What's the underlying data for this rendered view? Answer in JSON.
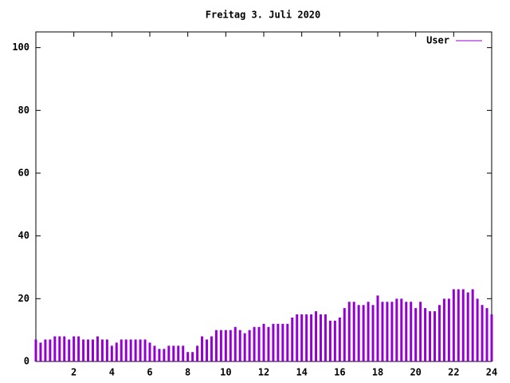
{
  "chart_data": {
    "type": "impulse",
    "title": "Freitag 3. Juli 2020",
    "series": [
      {
        "name": "User",
        "color": "#9400d3",
        "x": [
          0,
          0.25,
          0.5,
          0.75,
          1,
          1.25,
          1.5,
          1.75,
          2,
          2.25,
          2.5,
          2.75,
          3,
          3.25,
          3.5,
          3.75,
          4,
          4.25,
          4.5,
          4.75,
          5,
          5.25,
          5.5,
          5.75,
          6,
          6.25,
          6.5,
          6.75,
          7,
          7.25,
          7.5,
          7.75,
          8,
          8.25,
          8.5,
          8.75,
          9,
          9.25,
          9.5,
          9.75,
          10,
          10.25,
          10.5,
          10.75,
          11,
          11.25,
          11.5,
          11.75,
          12,
          12.25,
          12.5,
          12.75,
          13,
          13.25,
          13.5,
          13.75,
          14,
          14.25,
          14.5,
          14.75,
          15,
          15.25,
          15.5,
          15.75,
          16,
          16.25,
          16.5,
          16.75,
          17,
          17.25,
          17.5,
          17.75,
          18,
          18.25,
          18.5,
          18.75,
          19,
          19.25,
          19.5,
          19.75,
          20,
          20.25,
          20.5,
          20.75,
          21,
          21.25,
          21.5,
          21.75,
          22,
          22.25,
          22.5,
          22.75,
          23,
          23.25,
          23.5,
          23.75,
          24
        ],
        "values": [
          7,
          6,
          7,
          7,
          8,
          8,
          8,
          7,
          8,
          8,
          7,
          7,
          7,
          8,
          7,
          7,
          5,
          6,
          7,
          7,
          7,
          7,
          7,
          7,
          6,
          5,
          4,
          4,
          5,
          5,
          5,
          5,
          3,
          3,
          5,
          8,
          7,
          8,
          10,
          10,
          10,
          10,
          11,
          10,
          9,
          10,
          11,
          11,
          12,
          11,
          12,
          12,
          12,
          12,
          14,
          15,
          15,
          15,
          15,
          16,
          15,
          15,
          13,
          13,
          14,
          17,
          19,
          19,
          18,
          18,
          19,
          18,
          21,
          19,
          19,
          19,
          20,
          20,
          19,
          19,
          17,
          19,
          17,
          16,
          16,
          18,
          20,
          20,
          23,
          23,
          23,
          22,
          23,
          20,
          18,
          17,
          15
        ]
      }
    ],
    "xlim": [
      0,
      24
    ],
    "xticks": [
      2,
      4,
      6,
      8,
      10,
      12,
      14,
      16,
      18,
      20,
      22,
      24
    ],
    "ylim": [
      0,
      105
    ],
    "yticks": [
      0,
      20,
      40,
      60,
      80,
      100
    ],
    "legend": "upper right"
  }
}
